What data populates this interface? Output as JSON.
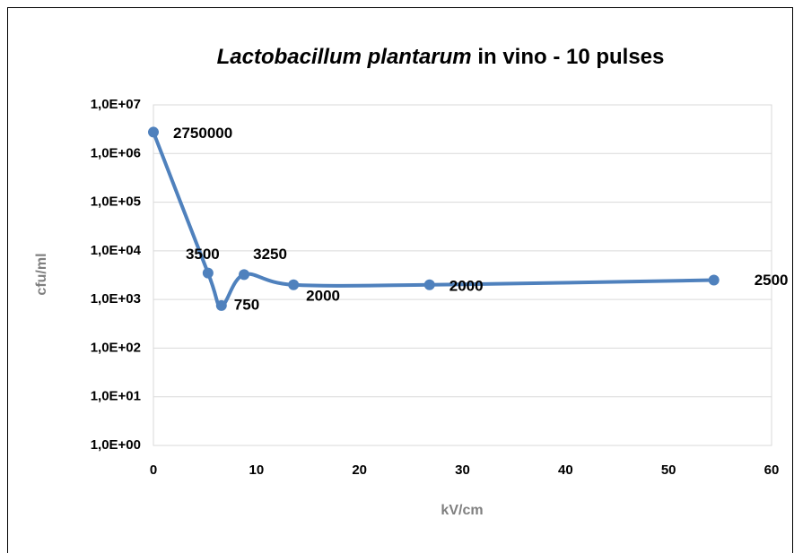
{
  "chart_data": {
    "type": "line",
    "title": [
      "Lactobacillum plantarum",
      " in vino - 10 pulses"
    ],
    "x_label": "kV/cm",
    "y_label": "cfu/ml",
    "x": [
      0,
      5.3,
      6.6,
      8.8,
      13.6,
      26.8,
      54.4
    ],
    "series": [
      {
        "name": "cfu/ml",
        "color": "#4f81bd",
        "values": [
          2750000,
          3500,
          750,
          3250,
          2000,
          2000,
          2500
        ]
      }
    ],
    "xlim": [
      0,
      60
    ],
    "xticks": [
      0,
      10,
      20,
      30,
      40,
      50,
      60
    ],
    "ylim": [
      1,
      10000000
    ],
    "ylog": true,
    "yticks": [
      {
        "value": 1,
        "label": "1,0E+00"
      },
      {
        "value": 10,
        "label": "1,0E+01"
      },
      {
        "value": 100,
        "label": "1,0E+02"
      },
      {
        "value": 1000,
        "label": "1,0E+03"
      },
      {
        "value": 10000,
        "label": "1,0E+04"
      },
      {
        "value": 100000,
        "label": "1,0E+05"
      },
      {
        "value": 1000000,
        "label": "1,0E+06"
      },
      {
        "value": 10000000,
        "label": "1,0E+07"
      }
    ],
    "grid": true,
    "smooth": true
  }
}
